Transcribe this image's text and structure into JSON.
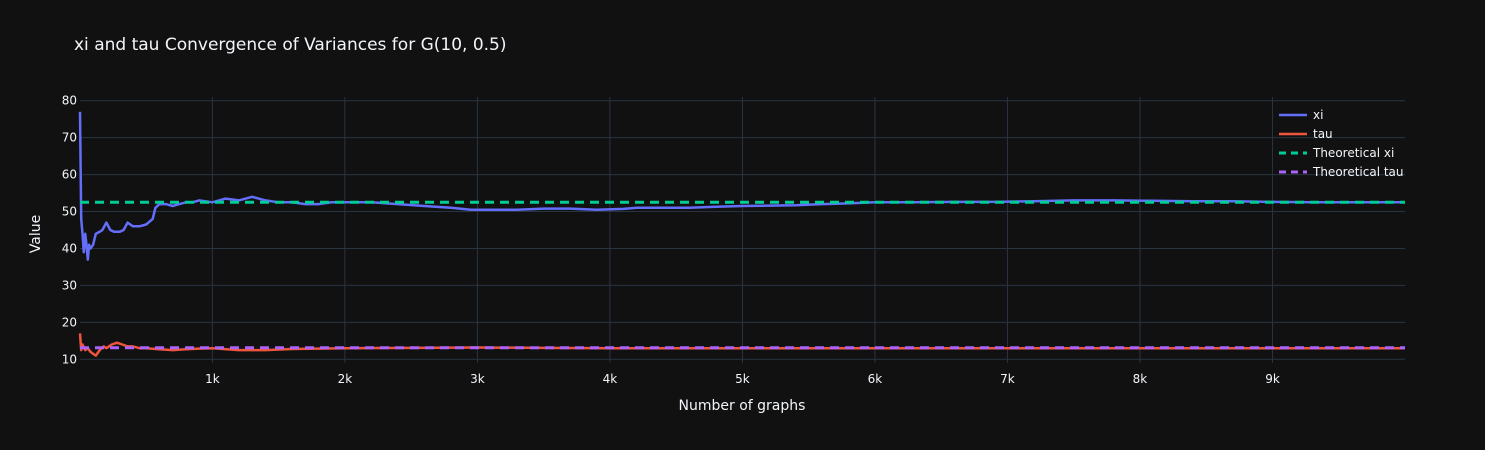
{
  "chart_data": {
    "type": "line",
    "title": "xi and tau Convergence of Variances for G(10, 0.5)",
    "xlabel": "Number of graphs",
    "ylabel": "Value",
    "xlim": [
      1,
      10000
    ],
    "ylim": [
      9,
      81
    ],
    "x_ticks": [
      1000,
      2000,
      3000,
      4000,
      5000,
      6000,
      7000,
      8000,
      9000
    ],
    "x_tick_labels": [
      "1k",
      "2k",
      "3k",
      "4k",
      "5k",
      "6k",
      "7k",
      "8k",
      "9k"
    ],
    "y_ticks": [
      10,
      20,
      30,
      40,
      50,
      60,
      70,
      80
    ],
    "y_tick_labels": [
      "10",
      "20",
      "30",
      "40",
      "50",
      "60",
      "70",
      "80"
    ],
    "grid": true,
    "legend_position": "top-right",
    "series": [
      {
        "name": "xi",
        "color": "#636efa",
        "dash": "solid",
        "x": [
          1,
          10,
          20,
          30,
          40,
          50,
          60,
          70,
          80,
          100,
          120,
          150,
          170,
          200,
          230,
          260,
          300,
          330,
          360,
          400,
          450,
          500,
          550,
          570,
          600,
          650,
          700,
          750,
          800,
          850,
          900,
          1000,
          1100,
          1200,
          1300,
          1400,
          1500,
          1600,
          1700,
          1800,
          1900,
          2000,
          2200,
          2400,
          2600,
          2800,
          2950,
          3100,
          3300,
          3500,
          3700,
          3900,
          4100,
          4200,
          4400,
          4600,
          4800,
          5000,
          5200,
          5400,
          5600,
          5800,
          6000,
          6300,
          6600,
          6900,
          7200,
          7500,
          7800,
          8100,
          8400,
          8700,
          9000,
          9300,
          9600,
          10000
        ],
        "y": [
          77,
          48,
          44,
          39,
          44,
          41,
          37,
          41,
          40,
          41,
          44,
          44.5,
          45,
          47,
          45,
          44.5,
          44.5,
          45,
          47,
          46,
          46,
          46.5,
          48,
          51,
          52,
          52,
          51.5,
          52,
          52.5,
          52.5,
          53,
          52.5,
          53.5,
          53,
          54,
          53,
          52.5,
          52.5,
          52,
          52,
          52.5,
          52.5,
          52.5,
          52,
          51.5,
          51,
          50.5,
          50.5,
          50.5,
          50.8,
          50.8,
          50.5,
          50.7,
          51,
          51,
          51,
          51.3,
          51.5,
          51.6,
          51.7,
          52,
          52.2,
          52.5,
          52.5,
          52.6,
          52.6,
          52.8,
          53,
          53,
          52.9,
          52.8,
          52.8,
          52.6,
          52.5,
          52.5,
          52.5
        ]
      },
      {
        "name": "tau",
        "color": "#ef553b",
        "dash": "solid",
        "x": [
          1,
          10,
          20,
          40,
          60,
          80,
          100,
          120,
          150,
          180,
          200,
          240,
          280,
          320,
          360,
          400,
          450,
          500,
          600,
          700,
          800,
          900,
          1000,
          1200,
          1400,
          1600,
          1800,
          2000,
          2500,
          3000,
          3500,
          4000,
          5000,
          6000,
          7000,
          8000,
          9000,
          10000
        ],
        "y": [
          17,
          12.5,
          14,
          12.5,
          13,
          12,
          11.5,
          11,
          12.5,
          13.5,
          13,
          14,
          14.5,
          14,
          13.5,
          13.5,
          13,
          13,
          12.7,
          12.5,
          12.7,
          12.9,
          13,
          12.5,
          12.5,
          12.8,
          12.9,
          13,
          13.1,
          13.2,
          13.1,
          13,
          13,
          13,
          13,
          13,
          13,
          13
        ]
      },
      {
        "name": "Theoretical xi",
        "color": "#00cc96",
        "dash": "dash",
        "x": [
          1,
          10000
        ],
        "y": [
          52.5,
          52.5
        ]
      },
      {
        "name": "Theoretical tau",
        "color": "#ab63fa",
        "dash": "dash",
        "x": [
          1,
          10000
        ],
        "y": [
          13.125,
          13.125
        ]
      }
    ]
  }
}
